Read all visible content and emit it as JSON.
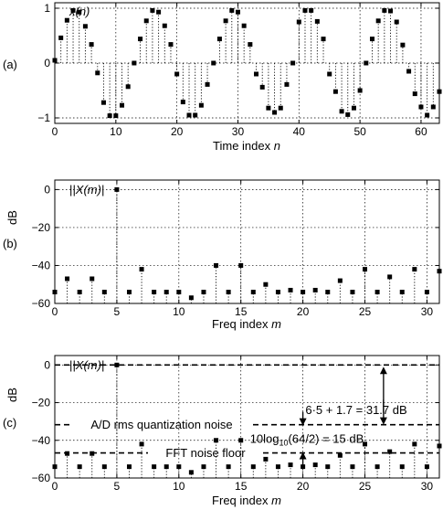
{
  "chart_data": [
    {
      "panel_label": "(a)",
      "type": "scatter",
      "stem": "dotted",
      "xlabel": "Time index",
      "xlabel_var": "n",
      "ylabel": "",
      "xlim": [
        0,
        63
      ],
      "ylim": [
        -1.1,
        1.1
      ],
      "xticks": [
        "0",
        "10",
        "20",
        "30",
        "40",
        "50",
        "60"
      ],
      "yticks": [
        "-1",
        "0",
        "1"
      ],
      "legend": "x(n)",
      "x": [
        0,
        1,
        2,
        3,
        4,
        5,
        6,
        7,
        8,
        9,
        10,
        11,
        12,
        13,
        14,
        15,
        16,
        17,
        18,
        19,
        20,
        21,
        22,
        23,
        24,
        25,
        26,
        27,
        28,
        29,
        30,
        31,
        32,
        33,
        34,
        35,
        36,
        37,
        38,
        39,
        40,
        41,
        42,
        43,
        44,
        45,
        46,
        47,
        48,
        49,
        50,
        51,
        52,
        53,
        54,
        55,
        56,
        57,
        58,
        59,
        60,
        61,
        62,
        63
      ],
      "y": [
        0.05,
        0.46,
        0.78,
        0.96,
        0.93,
        0.67,
        0.34,
        -0.18,
        -0.72,
        -0.96,
        -0.96,
        -0.77,
        -0.43,
        0.0,
        0.44,
        0.77,
        0.96,
        0.93,
        0.68,
        0.34,
        -0.2,
        -0.71,
        -0.95,
        -0.95,
        -0.77,
        -0.39,
        0.0,
        0.44,
        0.77,
        0.96,
        0.93,
        0.68,
        0.34,
        -0.2,
        -0.44,
        -0.82,
        -0.9,
        -0.82,
        -0.39,
        0.0,
        0.75,
        0.96,
        0.96,
        0.76,
        0.44,
        -0.2,
        -0.52,
        -0.88,
        -0.94,
        -0.82,
        -0.5,
        0.0,
        0.44,
        0.77,
        0.96,
        0.95,
        0.75,
        0.33,
        -0.15,
        -0.56,
        -0.8,
        -0.95,
        -0.8,
        -0.52
      ]
    },
    {
      "panel_label": "(b)",
      "type": "scatter",
      "stem": "dotted",
      "xlabel": "Freq index",
      "xlabel_var": "m",
      "ylabel": "dB",
      "xlim": [
        0,
        31
      ],
      "ylim": [
        -60,
        5
      ],
      "xticks": [
        "0",
        "5",
        "10",
        "15",
        "20",
        "25",
        "30"
      ],
      "yticks": [
        "0",
        "-20",
        "-40",
        "-60"
      ],
      "legend": "|X(m)|",
      "x": [
        0,
        1,
        2,
        3,
        4,
        5,
        6,
        7,
        8,
        9,
        10,
        11,
        12,
        13,
        14,
        15,
        16,
        17,
        18,
        19,
        20,
        21,
        22,
        23,
        24,
        25,
        26,
        27,
        28,
        29,
        30,
        31
      ],
      "y": [
        -54,
        -47,
        -54,
        -47,
        -54,
        0,
        -54,
        -42,
        -54,
        -54,
        -54,
        -57,
        -54,
        -40,
        -54,
        -40,
        -54,
        -50,
        -54,
        -53,
        -54,
        -53,
        -54,
        -48,
        -54,
        -42,
        -54,
        -46,
        -54,
        -42,
        -54,
        -43
      ]
    },
    {
      "panel_label": "(c)",
      "type": "scatter",
      "stem": "dotted",
      "xlabel": "Freq index",
      "xlabel_var": "m",
      "ylabel": "dB",
      "xlim": [
        0,
        31
      ],
      "ylim": [
        -60,
        5
      ],
      "xticks": [
        "0",
        "5",
        "10",
        "15",
        "20",
        "25",
        "30"
      ],
      "yticks": [
        "0",
        "-20",
        "-40",
        "-60"
      ],
      "legend": "|X(m)|",
      "x": [
        0,
        1,
        2,
        3,
        4,
        5,
        6,
        7,
        8,
        9,
        10,
        11,
        12,
        13,
        14,
        15,
        16,
        17,
        18,
        19,
        20,
        21,
        22,
        23,
        24,
        25,
        26,
        27,
        28,
        29,
        30,
        31
      ],
      "y": [
        -54,
        -47,
        -54,
        -47,
        -54,
        0,
        -54,
        -42,
        -54,
        -54,
        -54,
        -57,
        -54,
        -40,
        -54,
        -40,
        -54,
        -50,
        -54,
        -53,
        -54,
        -53,
        -54,
        -48,
        -54,
        -42,
        -54,
        -46,
        -54,
        -42,
        -54,
        -43
      ],
      "reference_lines": [
        {
          "y": 0,
          "style": "dashed"
        },
        {
          "y": -31.7,
          "style": "dashed",
          "label": "A/D rms quantization noise"
        },
        {
          "y": -46.7,
          "style": "dashed",
          "label": "FFT noise floor"
        }
      ],
      "annotations": {
        "sum_text": "6·5 + 1.7 = 31.7 dB",
        "gain_prefix": "10log",
        "gain_sub": "10",
        "gain_suffix": "(64/2)  = 15 dB"
      }
    }
  ]
}
